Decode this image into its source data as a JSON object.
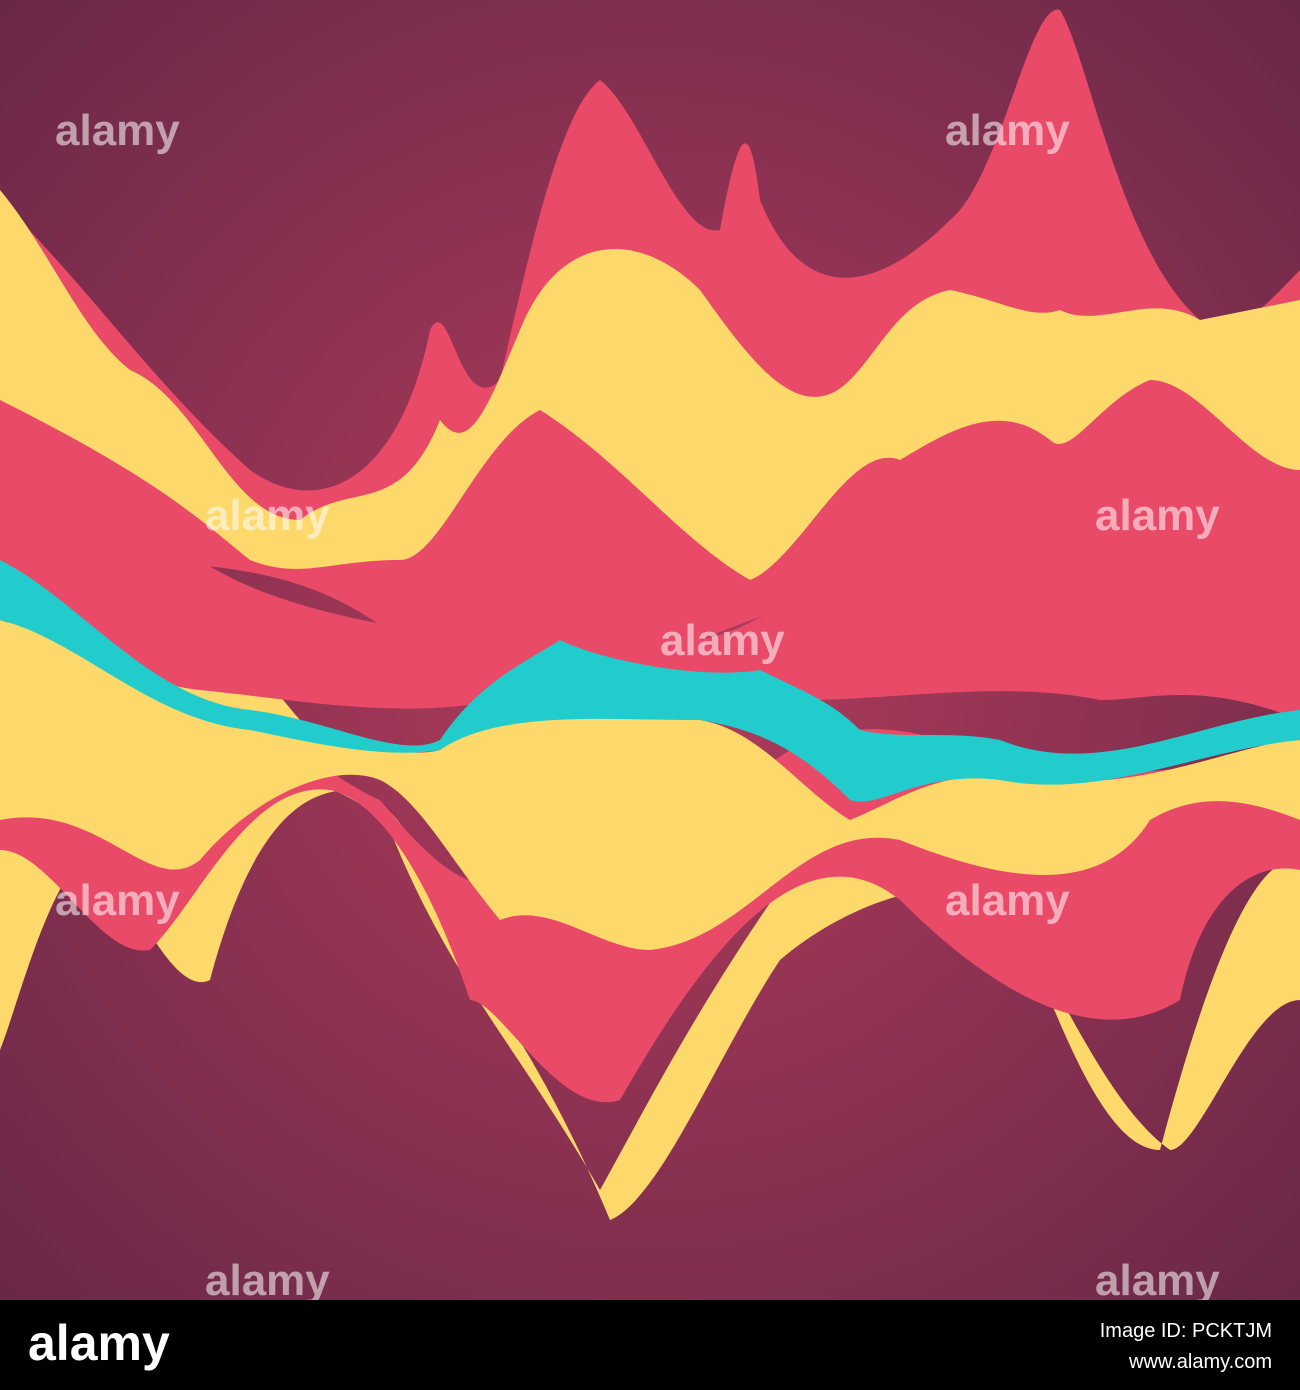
{
  "watermark": "alamy",
  "footer": {
    "logo": "alamy",
    "image_id": "Image ID: PCKTJM",
    "url": "www.alamy.com"
  }
}
